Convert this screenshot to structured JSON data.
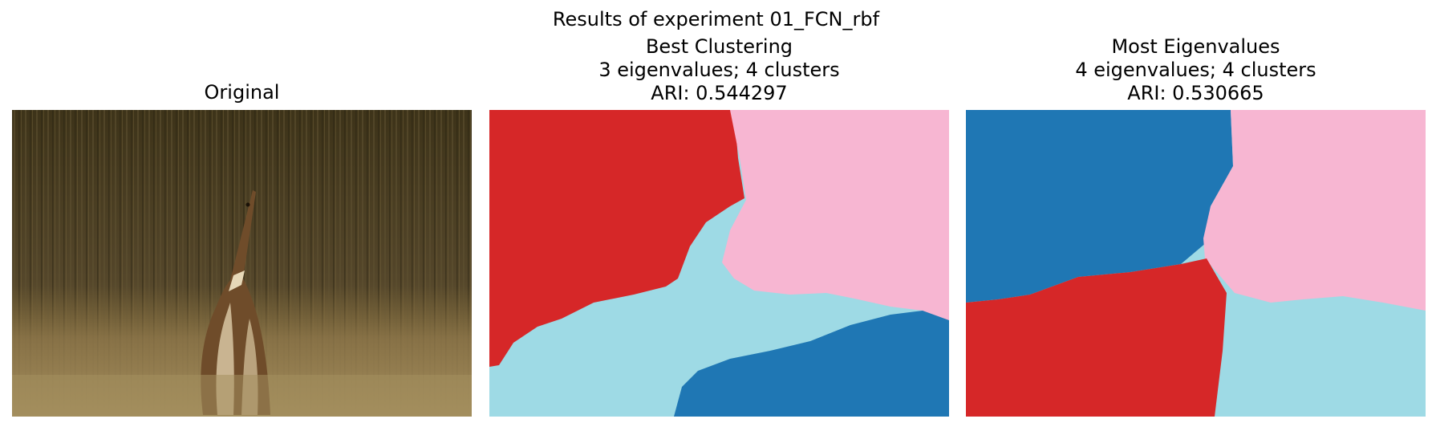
{
  "figure": {
    "suptitle": "Results of experiment 01_FCN_rbf",
    "panels": [
      {
        "title_lines": [
          "Original"
        ]
      },
      {
        "title_lines": [
          "Best Clustering",
          "3 eigenvalues; 4 clusters",
          "ARI: 0.544297"
        ]
      },
      {
        "title_lines": [
          "Most Eigenvalues",
          "4 eigenvalues; 4 clusters",
          "ARI: 0.530665"
        ]
      }
    ]
  },
  "colors": {
    "red": "#d62728",
    "pink": "#f7b6d2",
    "light_blue": "#9edae5",
    "dark_blue": "#1f77b4",
    "grass_dark": "#3b3018",
    "grass_mid": "#6b5a2e",
    "grass_light": "#9c8650",
    "bird_brown": "#7a5530",
    "bird_light": "#d8c8a8"
  }
}
